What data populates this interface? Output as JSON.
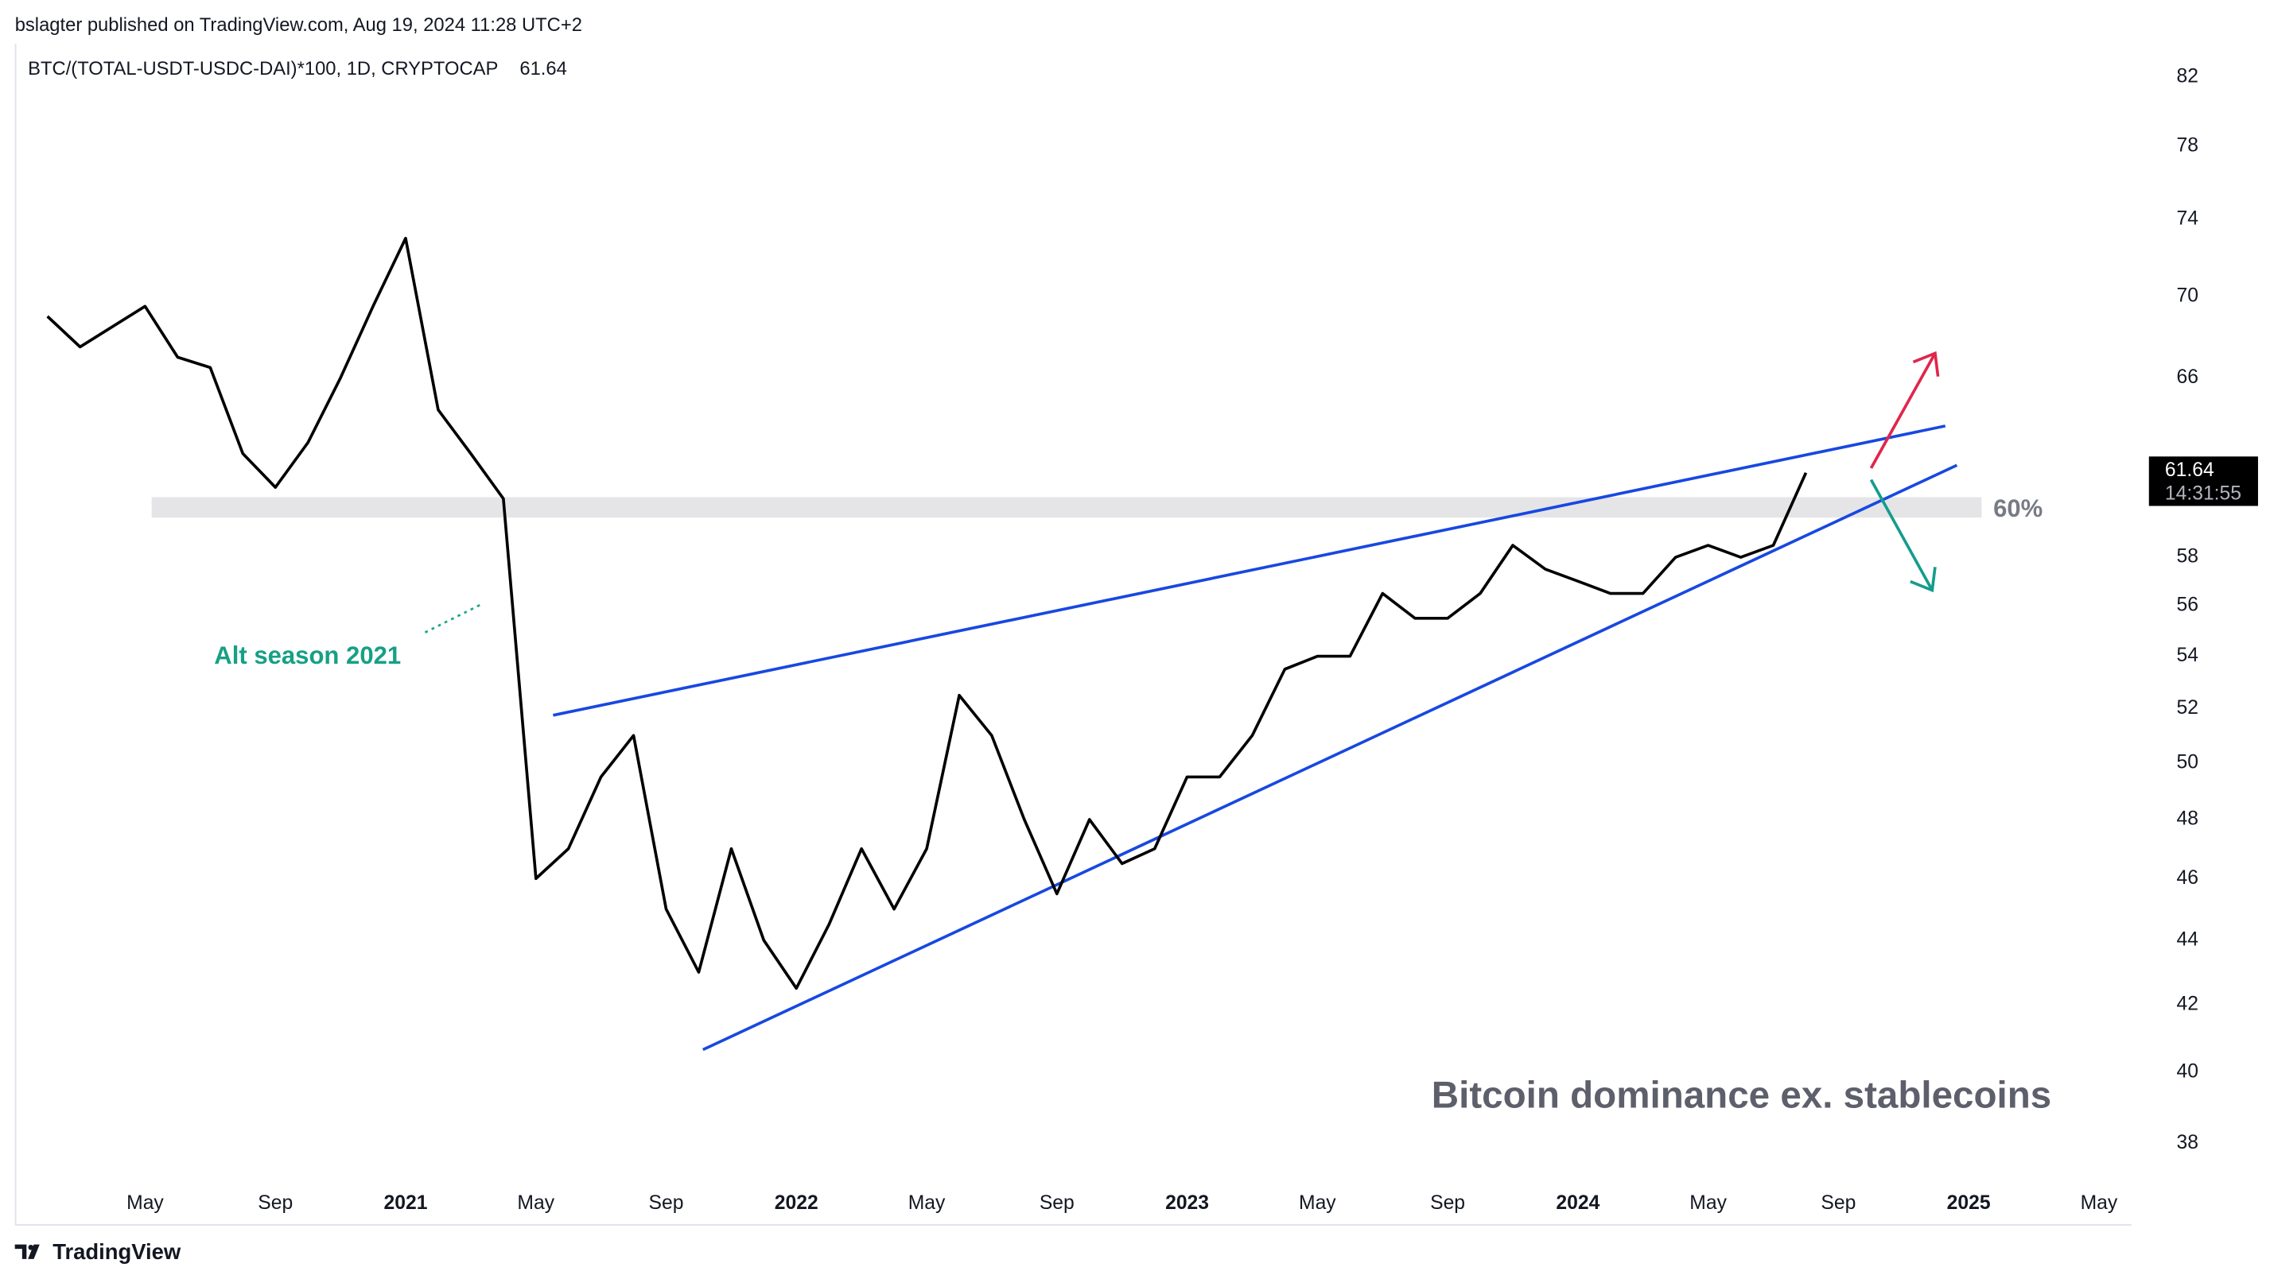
{
  "header": {
    "published": "bslagter published on TradingView.com, Aug 19, 2024 11:28 UTC+2"
  },
  "footer": {
    "brand": "TradingView"
  },
  "chart_data": {
    "type": "line",
    "title": "BTC/(TOTAL-USDT-USDC-DAI)*100, 1D, CRYPTOCAP",
    "countdown": "14:31:55",
    "watermark": "Bitcoin dominance ex. stablecoins",
    "annotations": [
      "Alt season 2021",
      "60%"
    ],
    "log_scale": true,
    "color": "#000000",
    "x": [
      "2020-02",
      "2020-03",
      "2020-04",
      "2020-05",
      "2020-06",
      "2020-07",
      "2020-08",
      "2020-09",
      "2020-10",
      "2020-11",
      "2020-12",
      "2021-01",
      "2021-02",
      "2021-03",
      "2021-04",
      "2021-05",
      "2021-06",
      "2021-07",
      "2021-08",
      "2021-09",
      "2021-10",
      "2021-11",
      "2021-12",
      "2022-01",
      "2022-02",
      "2022-03",
      "2022-04",
      "2022-05",
      "2022-06",
      "2022-07",
      "2022-08",
      "2022-09",
      "2022-10",
      "2022-11",
      "2022-12",
      "2023-01",
      "2023-02",
      "2023-03",
      "2023-04",
      "2023-05",
      "2023-06",
      "2023-07",
      "2023-08",
      "2023-09",
      "2023-10",
      "2023-11",
      "2023-12",
      "2024-01",
      "2024-02",
      "2024-03",
      "2024-04",
      "2024-05",
      "2024-06",
      "2024-07",
      "2024-08"
    ],
    "values": [
      69,
      67.5,
      68.5,
      69.5,
      67,
      66.5,
      62.5,
      61,
      63,
      66,
      69.5,
      73,
      64.5,
      62.5,
      60.5,
      46,
      47,
      49.5,
      51,
      45,
      43,
      47,
      44,
      42.5,
      44.5,
      47,
      45,
      47,
      52.5,
      51,
      48,
      45.5,
      48,
      46.5,
      47,
      49.5,
      49.5,
      51,
      53.5,
      54,
      54,
      56.5,
      55.5,
      55.5,
      56.5,
      58.5,
      57.5,
      57,
      56.5,
      56.5,
      58,
      58.5,
      58,
      58.5,
      61.64
    ],
    "xlim": [
      "2020-01",
      "2025-06"
    ],
    "xticks": [
      {
        "value": "2020-05",
        "label": "May"
      },
      {
        "value": "2020-09",
        "label": "Sep"
      },
      {
        "value": "2021-01",
        "label": "2021"
      },
      {
        "value": "2021-05",
        "label": "May"
      },
      {
        "value": "2021-09",
        "label": "Sep"
      },
      {
        "value": "2022-01",
        "label": "2022"
      },
      {
        "value": "2022-05",
        "label": "May"
      },
      {
        "value": "2022-09",
        "label": "Sep"
      },
      {
        "value": "2023-01",
        "label": "2023"
      },
      {
        "value": "2023-05",
        "label": "May"
      },
      {
        "value": "2023-09",
        "label": "Sep"
      },
      {
        "value": "2024-01",
        "label": "2024"
      },
      {
        "value": "2024-05",
        "label": "May"
      },
      {
        "value": "2024-09",
        "label": "Sep"
      },
      {
        "value": "2025-01",
        "label": "2025"
      },
      {
        "value": "2025-05",
        "label": "May"
      }
    ],
    "ylim": [
      37,
      84
    ],
    "yticks": [
      38,
      40,
      42,
      44,
      46,
      48,
      50,
      52,
      54,
      56,
      58,
      66,
      70,
      74,
      78,
      82
    ]
  }
}
